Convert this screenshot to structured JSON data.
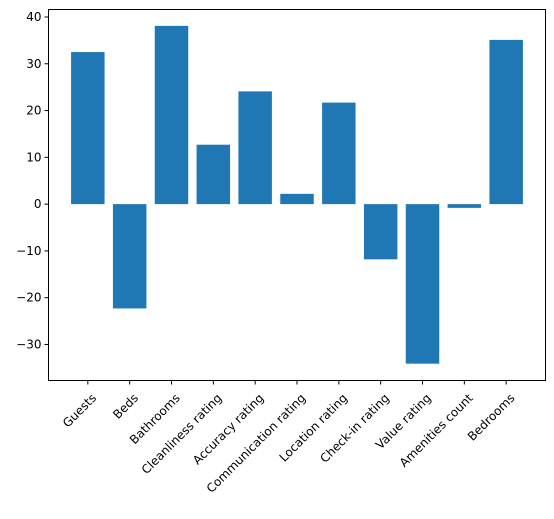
{
  "chart_data": {
    "type": "bar",
    "categories": [
      "Guests",
      "Beds",
      "Bathrooms",
      "Cleanliness rating",
      "Accuracy rating",
      "Communication rating",
      "Location rating",
      "Check-in rating",
      "Value rating",
      "Amenities count",
      "Bedrooms"
    ],
    "values": [
      32.5,
      -22.3,
      38.1,
      12.7,
      24.1,
      2.2,
      21.7,
      -11.8,
      -34.1,
      -0.8,
      35.1
    ],
    "ylim": [
      -37.7,
      41.6
    ],
    "yticks": [
      -30,
      -20,
      -10,
      0,
      10,
      20,
      30,
      40
    ],
    "ytick_labels": [
      "−30",
      "−20",
      "−10",
      "0",
      "10",
      "20",
      "30",
      "40"
    ],
    "title": "",
    "xlabel": "",
    "ylabel": "",
    "bar_color": "#1f77b4",
    "grid": false
  }
}
